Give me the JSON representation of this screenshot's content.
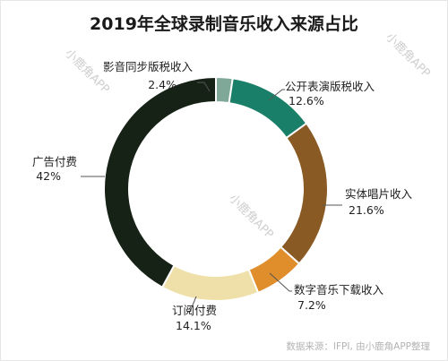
{
  "chart_data": {
    "type": "pie",
    "title": "2019年全球录制音乐收入来源占比",
    "slices": [
      {
        "label": "影音同步版税收入",
        "value": 2.4,
        "display": "2.4%",
        "color": "#7fa898"
      },
      {
        "label": "公开表演版税收入",
        "value": 12.6,
        "display": "12.6%",
        "color": "#1a7f68"
      },
      {
        "label": "实体唱片收入",
        "value": 21.6,
        "display": "21.6%",
        "color": "#8a5a24"
      },
      {
        "label": "数字音乐下载收入",
        "value": 7.2,
        "display": "7.2%",
        "color": "#e08e2c"
      },
      {
        "label": "订阅付费",
        "value": 14.1,
        "display": "14.1%",
        "color": "#efe0aa"
      },
      {
        "label": "广告付费",
        "value": 42,
        "display": "42%",
        "color": "#172216"
      }
    ]
  },
  "watermark": "小鹿角APP",
  "source": "数据来源：IFPI, 由小鹿角APP整理"
}
